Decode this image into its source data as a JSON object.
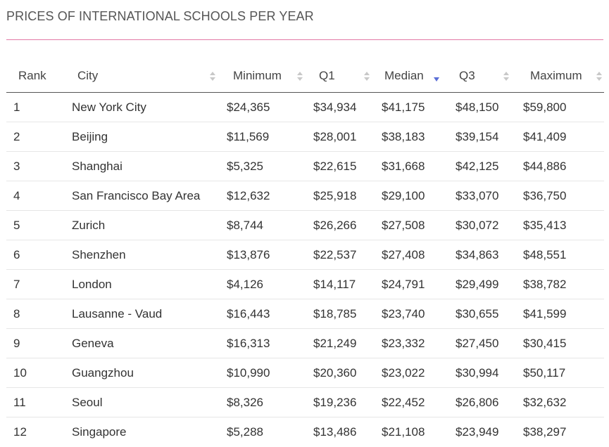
{
  "title": "PRICES OF INTERNATIONAL SCHOOLS PER YEAR",
  "colors": {
    "accent_rule": "#e27aa6",
    "sort_active": "#5b6fd6",
    "sort_inactive": "#c8c8c8"
  },
  "columns": [
    "Rank",
    "City",
    "Minimum",
    "Q1",
    "Median",
    "Q3",
    "Maximum"
  ],
  "sorted_column": "Median",
  "sort_direction": "descending",
  "rows": [
    {
      "rank": "1",
      "city": "New York City",
      "min": "$24,365",
      "q1": "$34,934",
      "median": "$41,175",
      "q3": "$48,150",
      "max": "$59,800"
    },
    {
      "rank": "2",
      "city": "Beijing",
      "min": "$11,569",
      "q1": "$28,001",
      "median": "$38,183",
      "q3": "$39,154",
      "max": "$41,409"
    },
    {
      "rank": "3",
      "city": "Shanghai",
      "min": "$5,325",
      "q1": "$22,615",
      "median": "$31,668",
      "q3": "$42,125",
      "max": "$44,886"
    },
    {
      "rank": "4",
      "city": "San Francisco Bay Area",
      "min": "$12,632",
      "q1": "$25,918",
      "median": "$29,100",
      "q3": "$33,070",
      "max": "$36,750"
    },
    {
      "rank": "5",
      "city": "Zurich",
      "min": "$8,744",
      "q1": "$26,266",
      "median": "$27,508",
      "q3": "$30,072",
      "max": "$35,413"
    },
    {
      "rank": "6",
      "city": "Shenzhen",
      "min": "$13,876",
      "q1": "$22,537",
      "median": "$27,408",
      "q3": "$34,863",
      "max": "$48,551"
    },
    {
      "rank": "7",
      "city": "London",
      "min": "$4,126",
      "q1": "$14,117",
      "median": "$24,791",
      "q3": "$29,499",
      "max": "$38,782"
    },
    {
      "rank": "8",
      "city": "Lausanne - Vaud",
      "min": "$16,443",
      "q1": "$18,785",
      "median": "$23,740",
      "q3": "$30,655",
      "max": "$41,599"
    },
    {
      "rank": "9",
      "city": "Geneva",
      "min": "$16,313",
      "q1": "$21,249",
      "median": "$23,332",
      "q3": "$27,450",
      "max": "$30,415"
    },
    {
      "rank": "10",
      "city": "Guangzhou",
      "min": "$10,990",
      "q1": "$20,360",
      "median": "$23,022",
      "q3": "$30,994",
      "max": "$50,117"
    },
    {
      "rank": "11",
      "city": "Seoul",
      "min": "$8,326",
      "q1": "$19,236",
      "median": "$22,452",
      "q3": "$26,806",
      "max": "$32,632"
    },
    {
      "rank": "12",
      "city": "Singapore",
      "min": "$5,288",
      "q1": "$13,486",
      "median": "$21,108",
      "q3": "$23,949",
      "max": "$38,297"
    }
  ]
}
